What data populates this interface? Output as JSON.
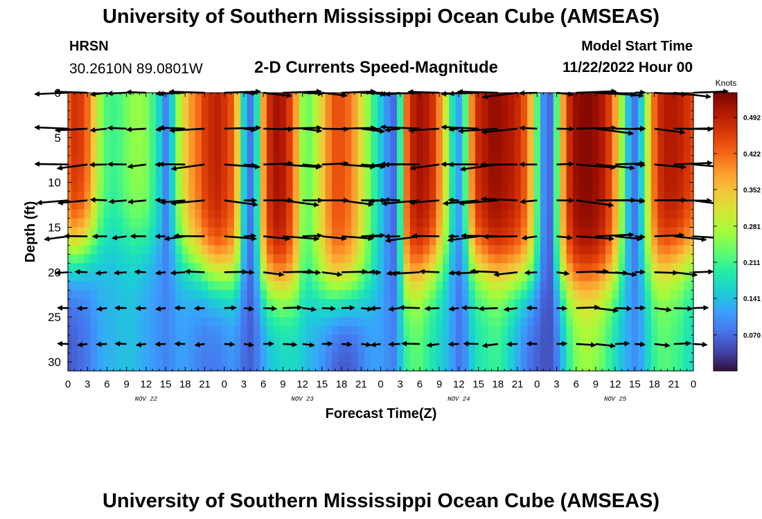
{
  "header": {
    "title": "University of Southern Mississippi Ocean Cube (AMSEAS)",
    "station": "HRSN",
    "coords": "30.2610N  89.0801W",
    "subtitle": "2-D Currents Speed-Magnitude",
    "start_label": "Model Start Time",
    "start_value": "11/22/2022 Hour 00"
  },
  "footer": {
    "title": "University of Southern Mississippi Ocean Cube (AMSEAS)"
  },
  "chart_data": {
    "type": "heatmap",
    "title": "2-D Currents Speed-Magnitude",
    "xlabel": "Forecast Time(Z)",
    "ylabel": "Depth (ft)",
    "x_range_hours": [
      0,
      96
    ],
    "ylim": [
      0,
      31
    ],
    "y_ticks": [
      0,
      5,
      10,
      15,
      20,
      25,
      30
    ],
    "x_tick_labels": [
      "0",
      "3",
      "6",
      "9",
      "12",
      "15",
      "18",
      "21",
      "0",
      "3",
      "6",
      "9",
      "12",
      "15",
      "18",
      "21",
      "0",
      "3",
      "6",
      "9",
      "12",
      "15",
      "18",
      "21",
      "0",
      "3",
      "6",
      "9",
      "12",
      "15",
      "18",
      "21",
      "0"
    ],
    "date_labels": [
      "NOV 22",
      "NOV 23",
      "NOV 24",
      "NOV 25"
    ],
    "colorbar": {
      "unit": "Knots",
      "range": [
        0,
        0.54
      ],
      "tick_labels": [
        "0.492",
        "0.422",
        "0.352",
        "0.281",
        "0.211",
        "0.141",
        "0.070"
      ],
      "colors": [
        "#30123b",
        "#4145ab",
        "#4675ed",
        "#39a2fc",
        "#1bcfd4",
        "#24eca6",
        "#61fc6c",
        "#a4fc3b",
        "#d1e834",
        "#f3c63a",
        "#fe9b2d",
        "#f36315",
        "#d93806",
        "#b11901",
        "#7a0402"
      ]
    },
    "arrow_depths_ft": [
      0,
      4,
      8,
      12,
      16,
      20,
      24,
      28
    ],
    "speed_profile": {
      "hours": [
        0,
        1,
        2,
        3,
        4,
        5,
        6,
        7,
        8,
        9,
        10,
        11,
        12,
        13,
        14,
        15,
        16,
        17,
        18,
        19,
        20,
        21,
        22,
        23,
        24,
        25,
        26,
        27,
        28,
        29,
        30,
        31,
        32,
        33,
        34,
        35,
        36,
        37,
        38,
        39,
        40,
        41,
        42,
        43,
        44,
        45,
        46,
        47,
        48,
        49,
        50,
        51,
        52,
        53,
        54,
        55,
        56,
        57,
        58,
        59,
        60,
        61,
        62,
        63,
        64,
        65,
        66,
        67,
        68,
        69,
        70,
        71,
        72,
        73,
        74,
        75,
        76,
        77,
        78,
        79,
        80,
        81,
        82,
        83,
        84,
        85,
        86,
        87,
        88,
        89,
        90,
        91,
        92,
        93,
        94,
        95,
        96
      ],
      "surface": [
        0.43,
        0.47,
        0.46,
        0.42,
        0.34,
        0.26,
        0.22,
        0.21,
        0.22,
        0.24,
        0.26,
        0.26,
        0.25,
        0.21,
        0.16,
        0.09,
        0.16,
        0.27,
        0.34,
        0.39,
        0.42,
        0.46,
        0.48,
        0.49,
        0.47,
        0.44,
        0.34,
        0.16,
        0.08,
        0.18,
        0.38,
        0.48,
        0.51,
        0.5,
        0.46,
        0.38,
        0.26,
        0.24,
        0.28,
        0.34,
        0.4,
        0.44,
        0.44,
        0.42,
        0.38,
        0.32,
        0.26,
        0.2,
        0.15,
        0.1,
        0.07,
        0.2,
        0.42,
        0.49,
        0.51,
        0.5,
        0.47,
        0.4,
        0.3,
        0.18,
        0.12,
        0.22,
        0.4,
        0.48,
        0.5,
        0.52,
        0.52,
        0.51,
        0.5,
        0.48,
        0.44,
        0.36,
        0.22,
        0.1,
        0.07,
        0.22,
        0.38,
        0.48,
        0.52,
        0.53,
        0.53,
        0.52,
        0.5,
        0.46,
        0.38,
        0.26,
        0.14,
        0.08,
        0.16,
        0.3,
        0.42,
        0.48,
        0.5,
        0.5,
        0.49,
        0.47,
        0.45
      ],
      "bottom": [
        0.05,
        0.06,
        0.07,
        0.08,
        0.1,
        0.12,
        0.13,
        0.13,
        0.14,
        0.14,
        0.14,
        0.13,
        0.12,
        0.11,
        0.1,
        0.09,
        0.1,
        0.11,
        0.11,
        0.1,
        0.09,
        0.08,
        0.08,
        0.08,
        0.09,
        0.1,
        0.09,
        0.07,
        0.06,
        0.08,
        0.11,
        0.14,
        0.15,
        0.16,
        0.16,
        0.16,
        0.15,
        0.13,
        0.12,
        0.1,
        0.08,
        0.06,
        0.05,
        0.05,
        0.06,
        0.08,
        0.1,
        0.11,
        0.11,
        0.1,
        0.09,
        0.14,
        0.2,
        0.22,
        0.22,
        0.2,
        0.18,
        0.16,
        0.14,
        0.11,
        0.08,
        0.1,
        0.15,
        0.18,
        0.19,
        0.2,
        0.2,
        0.18,
        0.15,
        0.12,
        0.09,
        0.07,
        0.06,
        0.05,
        0.05,
        0.08,
        0.14,
        0.2,
        0.24,
        0.26,
        0.26,
        0.25,
        0.23,
        0.2,
        0.17,
        0.14,
        0.12,
        0.1,
        0.12,
        0.16,
        0.2,
        0.22,
        0.22,
        0.21,
        0.2,
        0.18,
        0.17
      ],
      "transition_depth_ft": [
        18,
        16,
        17,
        20,
        21,
        22,
        22,
        21,
        18,
        20,
        21,
        21,
        20,
        18
      ]
    }
  }
}
